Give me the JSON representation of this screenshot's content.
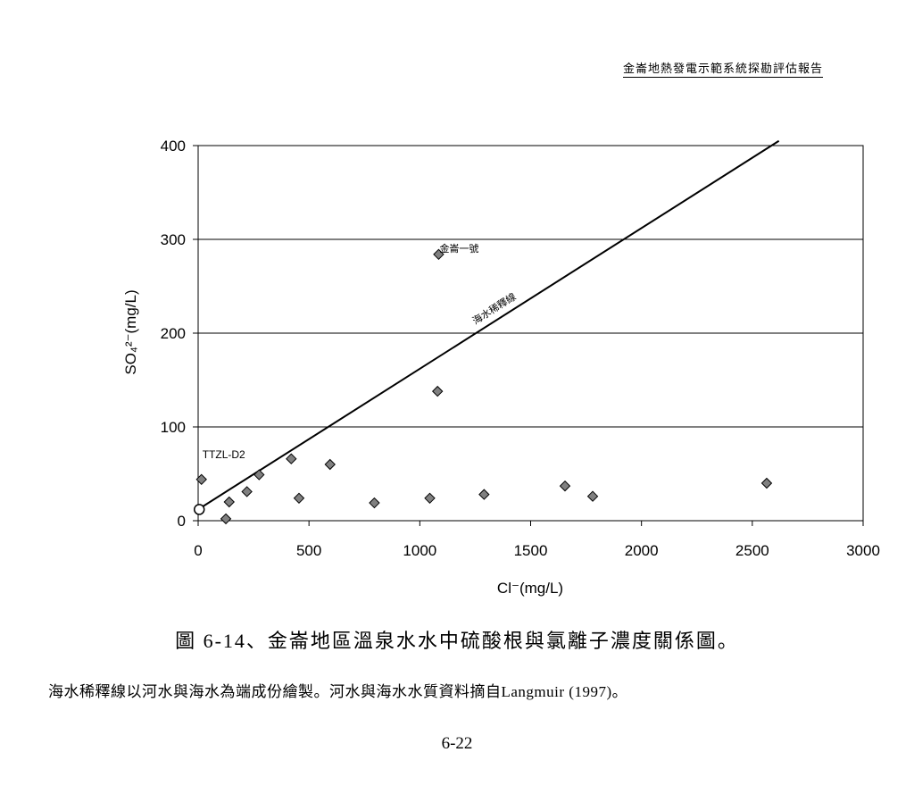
{
  "header": {
    "title": "金崙地熱發電示範系統探勘評估報告"
  },
  "caption": {
    "figure": "圖 6-14、金崙地區溫泉水水中硫酸根與氯離子濃度關係圖。"
  },
  "note": {
    "text": "海水稀釋線以河水與海水為端成份繪製。河水與海水水質資料摘自Langmuir (1997)。"
  },
  "page_number": "6-22",
  "chart_data": {
    "type": "scatter",
    "xlabel": "Cl⁻(mg/L)",
    "ylabel": "SO₄²⁻(mg/L)",
    "xlim": [
      0,
      3000
    ],
    "ylim": [
      0,
      400
    ],
    "x_ticks": [
      "0",
      "500",
      "1000",
      "1500",
      "2000",
      "2500",
      "3000"
    ],
    "y_ticks": [
      "0",
      "100",
      "200",
      "300",
      "400"
    ],
    "grid": "horizontal",
    "series": [
      {
        "marker": "diamond",
        "color": "#808080",
        "points": [
          {
            "x": 15,
            "y": 44
          },
          {
            "x": 125,
            "y": 2
          },
          {
            "x": 140,
            "y": 20
          },
          {
            "x": 220,
            "y": 31
          },
          {
            "x": 275,
            "y": 49
          },
          {
            "x": 420,
            "y": 66
          },
          {
            "x": 455,
            "y": 24
          },
          {
            "x": 595,
            "y": 60
          },
          {
            "x": 795,
            "y": 19
          },
          {
            "x": 1045,
            "y": 24
          },
          {
            "x": 1080,
            "y": 138
          },
          {
            "x": 1085,
            "y": 284
          },
          {
            "x": 1290,
            "y": 28
          },
          {
            "x": 1655,
            "y": 37
          },
          {
            "x": 1780,
            "y": 26
          },
          {
            "x": 2565,
            "y": 40
          }
        ]
      },
      {
        "marker": "circle",
        "color": "#ffffff",
        "points": [
          {
            "x": 5,
            "y": 12
          }
        ]
      }
    ],
    "dilution_line": {
      "label": "海水稀釋線",
      "from": [
        0,
        12
      ],
      "to": [
        2620,
        405
      ]
    },
    "annotations": [
      {
        "text": "金崙一號",
        "x": 1085,
        "y": 284
      },
      {
        "text": "TTZL-D2",
        "x": 15,
        "y": 44
      }
    ]
  }
}
